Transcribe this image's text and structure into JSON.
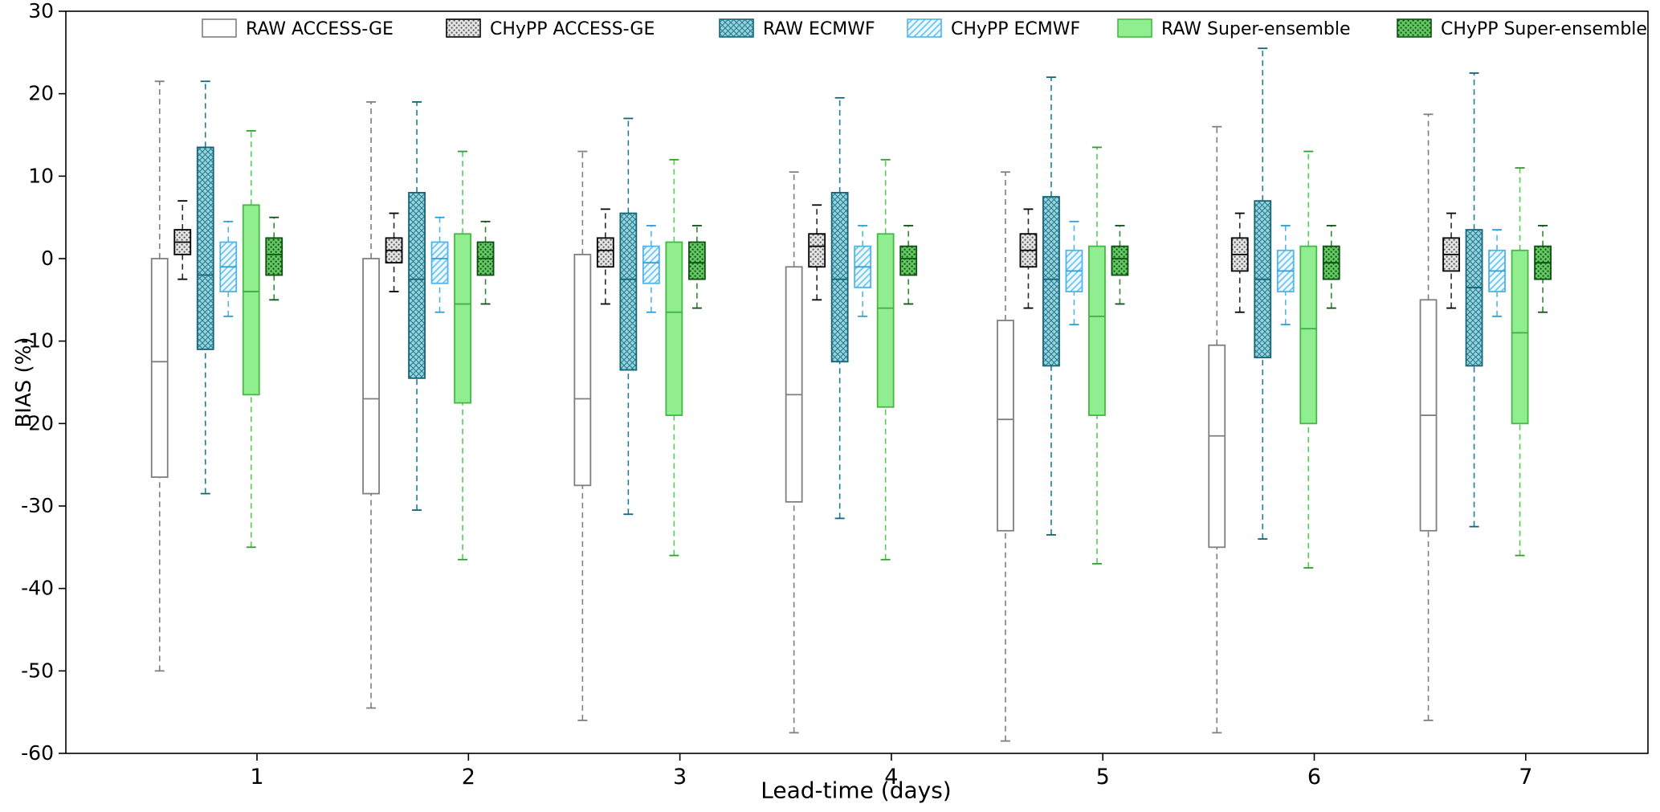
{
  "chart_data": {
    "type": "boxplot",
    "title": "",
    "xlabel": "Lead-time (days)",
    "ylabel": "BIAS (%)",
    "ylim": [
      -60,
      30
    ],
    "yticks": [
      30,
      20,
      10,
      0,
      -10,
      -20,
      -30,
      -40,
      -50,
      -60
    ],
    "categories": [
      "1",
      "2",
      "3",
      "4",
      "5",
      "6",
      "7"
    ],
    "legend_position": "top",
    "grid": false,
    "series": [
      {
        "name": "RAW ACCESS-GE",
        "style": {
          "fill_type": "solid",
          "face": "#ffffff",
          "accent": "#ffffff",
          "edge": "#7f7f7f",
          "whisker": "#7f7f7f",
          "cap": "#7f7f7f",
          "median": "#7f7f7f"
        },
        "boxes": [
          {
            "low": -50.0,
            "q1": -26.5,
            "median": -12.5,
            "q3": 0.0,
            "high": 21.5
          },
          {
            "low": -54.5,
            "q1": -28.5,
            "median": -17.0,
            "q3": 0.0,
            "high": 19.0
          },
          {
            "low": -56.0,
            "q1": -27.5,
            "median": -17.0,
            "q3": 0.5,
            "high": 13.0
          },
          {
            "low": -57.5,
            "q1": -29.5,
            "median": -16.5,
            "q3": -1.0,
            "high": 10.5
          },
          {
            "low": -58.5,
            "q1": -33.0,
            "median": -19.5,
            "q3": -7.5,
            "high": 10.5
          },
          {
            "low": -57.5,
            "q1": -35.0,
            "median": -21.5,
            "q3": -10.5,
            "high": 16.0
          },
          {
            "low": -56.0,
            "q1": -33.0,
            "median": -19.0,
            "q3": -5.0,
            "high": 17.5
          }
        ]
      },
      {
        "name": "CHyPP ACCESS-GE",
        "style": {
          "fill_type": "dots",
          "face": "#e4e4e4",
          "accent": "#585858",
          "edge": "#000000",
          "whisker": "#2b2b2b",
          "cap": "#000000",
          "median": "#000000"
        },
        "boxes": [
          {
            "low": -2.5,
            "q1": 0.5,
            "median": 2.0,
            "q3": 3.5,
            "high": 7.0
          },
          {
            "low": -4.0,
            "q1": -0.5,
            "median": 1.0,
            "q3": 2.5,
            "high": 5.5
          },
          {
            "low": -5.5,
            "q1": -1.0,
            "median": 1.0,
            "q3": 2.5,
            "high": 6.0
          },
          {
            "low": -5.0,
            "q1": -1.0,
            "median": 1.5,
            "q3": 3.0,
            "high": 6.5
          },
          {
            "low": -6.0,
            "q1": -1.0,
            "median": 1.0,
            "q3": 3.0,
            "high": 6.0
          },
          {
            "low": -6.5,
            "q1": -1.5,
            "median": 0.5,
            "q3": 2.5,
            "high": 5.5
          },
          {
            "low": -6.0,
            "q1": -1.5,
            "median": 0.5,
            "q3": 2.5,
            "high": 5.5
          }
        ]
      },
      {
        "name": "RAW ECMWF",
        "style": {
          "fill_type": "cross",
          "face": "#9ed2db",
          "accent": "#1f7f93",
          "edge": "#136578",
          "whisker": "#1f7f93",
          "cap": "#136578",
          "median": "#136578"
        },
        "boxes": [
          {
            "low": -28.5,
            "q1": -11.0,
            "median": -2.0,
            "q3": 13.5,
            "high": 21.5
          },
          {
            "low": -30.5,
            "q1": -14.5,
            "median": -2.5,
            "q3": 8.0,
            "high": 19.0
          },
          {
            "low": -31.0,
            "q1": -13.5,
            "median": -2.5,
            "q3": 5.5,
            "high": 17.0
          },
          {
            "low": -31.5,
            "q1": -12.5,
            "median": -2.5,
            "q3": 8.0,
            "high": 19.5
          },
          {
            "low": -33.5,
            "q1": -13.0,
            "median": -2.5,
            "q3": 7.5,
            "high": 22.0
          },
          {
            "low": -34.0,
            "q1": -12.0,
            "median": -2.5,
            "q3": 7.0,
            "high": 25.5
          },
          {
            "low": -32.5,
            "q1": -13.0,
            "median": -3.5,
            "q3": 3.5,
            "high": 22.5
          }
        ]
      },
      {
        "name": "CHyPP ECMWF",
        "style": {
          "fill_type": "diag",
          "face": "#eef8fe",
          "accent": "#63c3f0",
          "edge": "#4fb6ea",
          "whisker": "#4fb6ea",
          "cap": "#2d9fd8",
          "median": "#2d9fd8"
        },
        "boxes": [
          {
            "low": -7.0,
            "q1": -4.0,
            "median": -1.0,
            "q3": 2.0,
            "high": 4.5
          },
          {
            "low": -6.5,
            "q1": -3.0,
            "median": 0.0,
            "q3": 2.0,
            "high": 5.0
          },
          {
            "low": -6.5,
            "q1": -3.0,
            "median": -0.5,
            "q3": 1.5,
            "high": 4.0
          },
          {
            "low": -7.0,
            "q1": -3.5,
            "median": -1.0,
            "q3": 1.5,
            "high": 4.0
          },
          {
            "low": -8.0,
            "q1": -4.0,
            "median": -1.5,
            "q3": 1.0,
            "high": 4.5
          },
          {
            "low": -8.0,
            "q1": -4.0,
            "median": -1.5,
            "q3": 1.0,
            "high": 4.0
          },
          {
            "low": -7.0,
            "q1": -4.0,
            "median": -1.5,
            "q3": 1.0,
            "high": 3.5
          }
        ]
      },
      {
        "name": "RAW Super-ensemble",
        "style": {
          "fill_type": "solid",
          "face": "#90ee90",
          "accent": "#90ee90",
          "edge": "#44b944",
          "whisker": "#55cc55",
          "cap": "#2e9e2e",
          "median": "#3fae4a"
        },
        "boxes": [
          {
            "low": -35.0,
            "q1": -16.5,
            "median": -4.0,
            "q3": 6.5,
            "high": 15.5
          },
          {
            "low": -36.5,
            "q1": -17.5,
            "median": -5.5,
            "q3": 3.0,
            "high": 13.0
          },
          {
            "low": -36.0,
            "q1": -19.0,
            "median": -6.5,
            "q3": 2.0,
            "high": 12.0
          },
          {
            "low": -36.5,
            "q1": -18.0,
            "median": -6.0,
            "q3": 3.0,
            "high": 12.0
          },
          {
            "low": -37.0,
            "q1": -19.0,
            "median": -7.0,
            "q3": 1.5,
            "high": 13.5
          },
          {
            "low": -37.5,
            "q1": -20.0,
            "median": -8.5,
            "q3": 1.5,
            "high": 13.0
          },
          {
            "low": -36.0,
            "q1": -20.0,
            "median": -9.0,
            "q3": 1.0,
            "high": 11.0
          }
        ]
      },
      {
        "name": "CHyPP Super-ensemble",
        "style": {
          "fill_type": "dots",
          "face": "#63c763",
          "accent": "#0f4d0f",
          "edge": "#0d5213",
          "whisker": "#2e8b2e",
          "cap": "#0d5213",
          "median": "#0d5213"
        },
        "boxes": [
          {
            "low": -5.0,
            "q1": -2.0,
            "median": 0.5,
            "q3": 2.5,
            "high": 5.0
          },
          {
            "low": -5.5,
            "q1": -2.0,
            "median": 0.0,
            "q3": 2.0,
            "high": 4.5
          },
          {
            "low": -6.0,
            "q1": -2.5,
            "median": -0.5,
            "q3": 2.0,
            "high": 4.0
          },
          {
            "low": -5.5,
            "q1": -2.0,
            "median": 0.0,
            "q3": 1.5,
            "high": 4.0
          },
          {
            "low": -5.5,
            "q1": -2.0,
            "median": 0.0,
            "q3": 1.5,
            "high": 4.0
          },
          {
            "low": -6.0,
            "q1": -2.5,
            "median": -0.5,
            "q3": 1.5,
            "high": 4.0
          },
          {
            "low": -6.5,
            "q1": -2.5,
            "median": -0.5,
            "q3": 1.5,
            "high": 4.0
          }
        ]
      }
    ]
  }
}
